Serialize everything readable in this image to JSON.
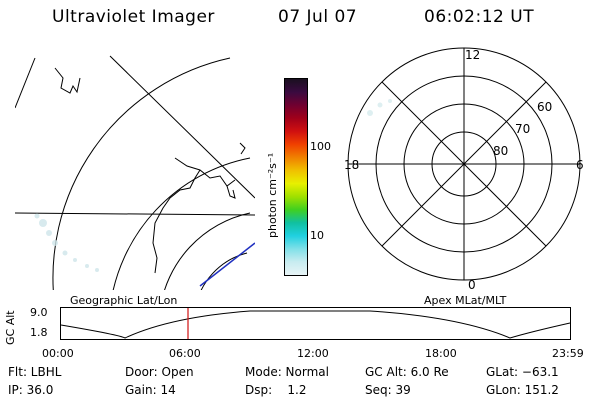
{
  "header": {
    "title": "Ultraviolet Imager",
    "date": "07 Jul 07",
    "time": "06:02:12 UT"
  },
  "colorbar": {
    "unit_label": "photon cm⁻²s⁻¹",
    "ticks": [
      "100",
      "10"
    ],
    "colors": [
      "#1a1020",
      "#3a0a40",
      "#700030",
      "#a0001a",
      "#d01010",
      "#f04000",
      "#f08000",
      "#f0c000",
      "#e8f000",
      "#a0e000",
      "#40d020",
      "#10c0a0",
      "#20d0e0",
      "#80e0e8",
      "#c8ecf0",
      "#e8f4f6"
    ]
  },
  "geo_panel": {
    "label": "Geographic Lat/Lon"
  },
  "polar_panel": {
    "label": "Apex MLat/MLT",
    "mlt": {
      "top": "12",
      "left": "18",
      "right": "6",
      "bottom": "0"
    },
    "lat": [
      "60",
      "70",
      "80"
    ]
  },
  "altitude_plot": {
    "ylabel": "GC Alt",
    "ymax": "9.0",
    "ymin": "1.8",
    "ticks": [
      "00:00",
      "06:00",
      "12:00",
      "18:00",
      "23:59"
    ]
  },
  "info": {
    "filter": "Flt: LBHL",
    "ip": "IP: 36.0",
    "door": "Door: Open",
    "gain": "Gain: 14",
    "mode": "Mode: Normal",
    "dsp": "Dsp:    1.2",
    "gc_alt": "GC Alt: 6.0 Re",
    "seq": "Seq: 39",
    "glat": "GLat: −63.1",
    "glon": "GLon: 151.2"
  }
}
